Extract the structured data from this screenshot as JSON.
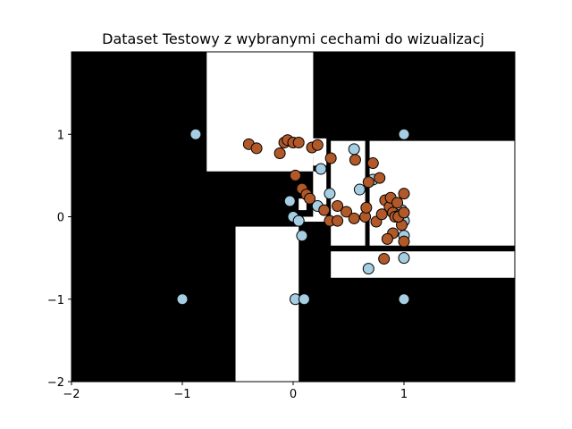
{
  "chart_data": {
    "type": "scatter",
    "title": "Dataset Testowy z wybranymi cechami do wizualizacj",
    "xlabel": "",
    "ylabel": "",
    "xlim": [
      -2,
      2
    ],
    "ylim": [
      -2,
      2
    ],
    "xticks": [
      -2,
      -1,
      0,
      1
    ],
    "yticks": [
      -2,
      -1,
      0,
      1
    ],
    "grid": false,
    "background_regions": {
      "base_color": "#000000",
      "region_color": "#ffffff",
      "rects": [
        [
          -0.78,
          0.55,
          0.18,
          2.0
        ],
        [
          -0.52,
          -2.0,
          0.05,
          -0.12
        ],
        [
          0.05,
          0.72,
          0.18,
          2.0
        ],
        [
          0.05,
          0.08,
          0.12,
          0.22
        ],
        [
          0.05,
          -0.06,
          0.3,
          0.0
        ],
        [
          0.18,
          0.62,
          0.3,
          0.95
        ],
        [
          0.34,
          -0.35,
          0.65,
          0.92
        ],
        [
          0.69,
          -0.35,
          2.0,
          0.92
        ],
        [
          0.34,
          -0.74,
          2.0,
          -0.42
        ],
        [
          0.18,
          0.0,
          0.3,
          0.55
        ]
      ]
    },
    "series": [
      {
        "color": "#a6cee3",
        "points": [
          [
            -0.88,
            1.0
          ],
          [
            1.0,
            1.0
          ],
          [
            -1.0,
            -1.0
          ],
          [
            0.02,
            -1.0
          ],
          [
            0.1,
            -1.0
          ],
          [
            1.0,
            -1.0
          ],
          [
            0.55,
            0.82
          ],
          [
            0.25,
            0.58
          ],
          [
            0.33,
            0.28
          ],
          [
            0.6,
            0.33
          ],
          [
            -0.03,
            0.19
          ],
          [
            0.22,
            0.13
          ],
          [
            0.0,
            0.0
          ],
          [
            0.05,
            -0.05
          ],
          [
            0.08,
            -0.23
          ],
          [
            0.68,
            -0.63
          ],
          [
            1.0,
            -0.5
          ],
          [
            1.0,
            -0.23
          ],
          [
            0.72,
            0.45
          ],
          [
            1.0,
            -0.05
          ],
          [
            0.98,
            0.08
          ]
        ]
      },
      {
        "color": "#b15928",
        "points": [
          [
            -0.4,
            0.88
          ],
          [
            -0.33,
            0.83
          ],
          [
            -0.12,
            0.77
          ],
          [
            -0.08,
            0.9
          ],
          [
            -0.05,
            0.93
          ],
          [
            0.0,
            0.9
          ],
          [
            0.05,
            0.9
          ],
          [
            0.17,
            0.84
          ],
          [
            0.22,
            0.87
          ],
          [
            0.34,
            0.71
          ],
          [
            0.56,
            0.69
          ],
          [
            0.72,
            0.65
          ],
          [
            0.78,
            0.47
          ],
          [
            0.68,
            0.42
          ],
          [
            0.02,
            0.5
          ],
          [
            0.08,
            0.34
          ],
          [
            0.12,
            0.27
          ],
          [
            0.15,
            0.22
          ],
          [
            0.28,
            0.08
          ],
          [
            0.33,
            -0.05
          ],
          [
            0.4,
            -0.05
          ],
          [
            0.4,
            0.13
          ],
          [
            0.48,
            0.06
          ],
          [
            0.55,
            -0.02
          ],
          [
            0.65,
            0.0
          ],
          [
            0.66,
            0.11
          ],
          [
            0.75,
            -0.06
          ],
          [
            0.8,
            0.03
          ],
          [
            0.83,
            0.2
          ],
          [
            0.87,
            0.12
          ],
          [
            0.88,
            0.23
          ],
          [
            0.9,
            0.05
          ],
          [
            0.92,
            0.0
          ],
          [
            0.94,
            0.17
          ],
          [
            0.96,
            0.02
          ],
          [
            0.98,
            -0.1
          ],
          [
            1.0,
            0.28
          ],
          [
            1.0,
            -0.3
          ],
          [
            0.9,
            -0.2
          ],
          [
            0.85,
            -0.27
          ],
          [
            0.82,
            -0.51
          ],
          [
            0.95,
            0.0
          ],
          [
            1.0,
            0.05
          ]
        ]
      }
    ]
  }
}
